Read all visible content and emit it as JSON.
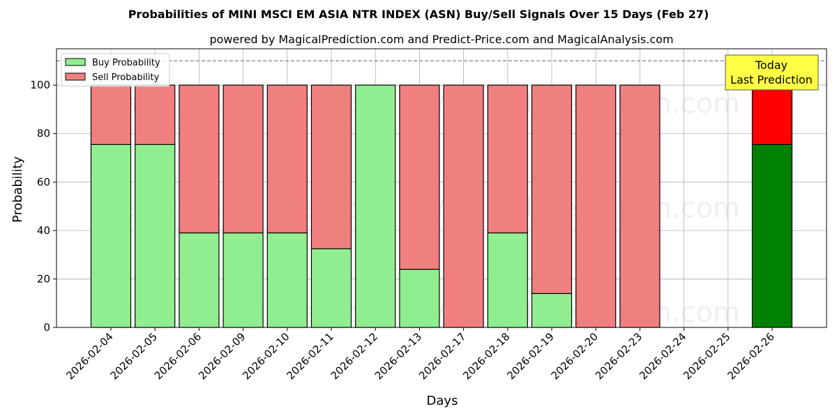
{
  "chart_data": {
    "type": "bar",
    "stacked": true,
    "title": "Probabilities of MINI MSCI EM ASIA NTR INDEX (ASN) Buy/Sell Signals Over 15 Days (Feb 27)",
    "subtitle": "powered by MagicalPrediction.com and Predict-Price.com and MagicalAnalysis.com",
    "xlabel": "Days",
    "ylabel": "Probability",
    "ylim": [
      0,
      115
    ],
    "yticks": [
      0,
      20,
      40,
      60,
      80,
      100
    ],
    "reference_line": 110,
    "grid": true,
    "legend_position": "top-left",
    "categories": [
      "2026-02-04",
      "2026-02-05",
      "2026-02-06",
      "2026-02-09",
      "2026-02-10",
      "2026-02-11",
      "2026-02-12",
      "2026-02-13",
      "2026-02-17",
      "2026-02-18",
      "2026-02-19",
      "2026-02-20",
      "2026-02-23",
      "2026-02-24",
      "2026-02-25",
      "2026-02-26"
    ],
    "series": [
      {
        "name": "Buy Probability",
        "color": "#90ee90",
        "values": [
          75.5,
          75.5,
          39,
          39,
          39,
          32.5,
          100,
          24,
          0,
          39,
          14,
          0,
          0,
          null,
          null,
          75.5
        ]
      },
      {
        "name": "Sell Probability",
        "color": "#f08080",
        "values": [
          24.5,
          24.5,
          61,
          61,
          61,
          67.5,
          0,
          76,
          100,
          61,
          86,
          100,
          100,
          null,
          null,
          24.5
        ]
      }
    ],
    "highlight": {
      "category": "2026-02-26",
      "buy_color": "#008000",
      "sell_color": "#ff0000"
    },
    "annotation": {
      "lines": [
        "Today",
        "Last Prediction"
      ],
      "background": "#ffff44"
    },
    "watermarks": [
      "MagicalAnalysis.com",
      "MagicalPrediction.com"
    ]
  }
}
